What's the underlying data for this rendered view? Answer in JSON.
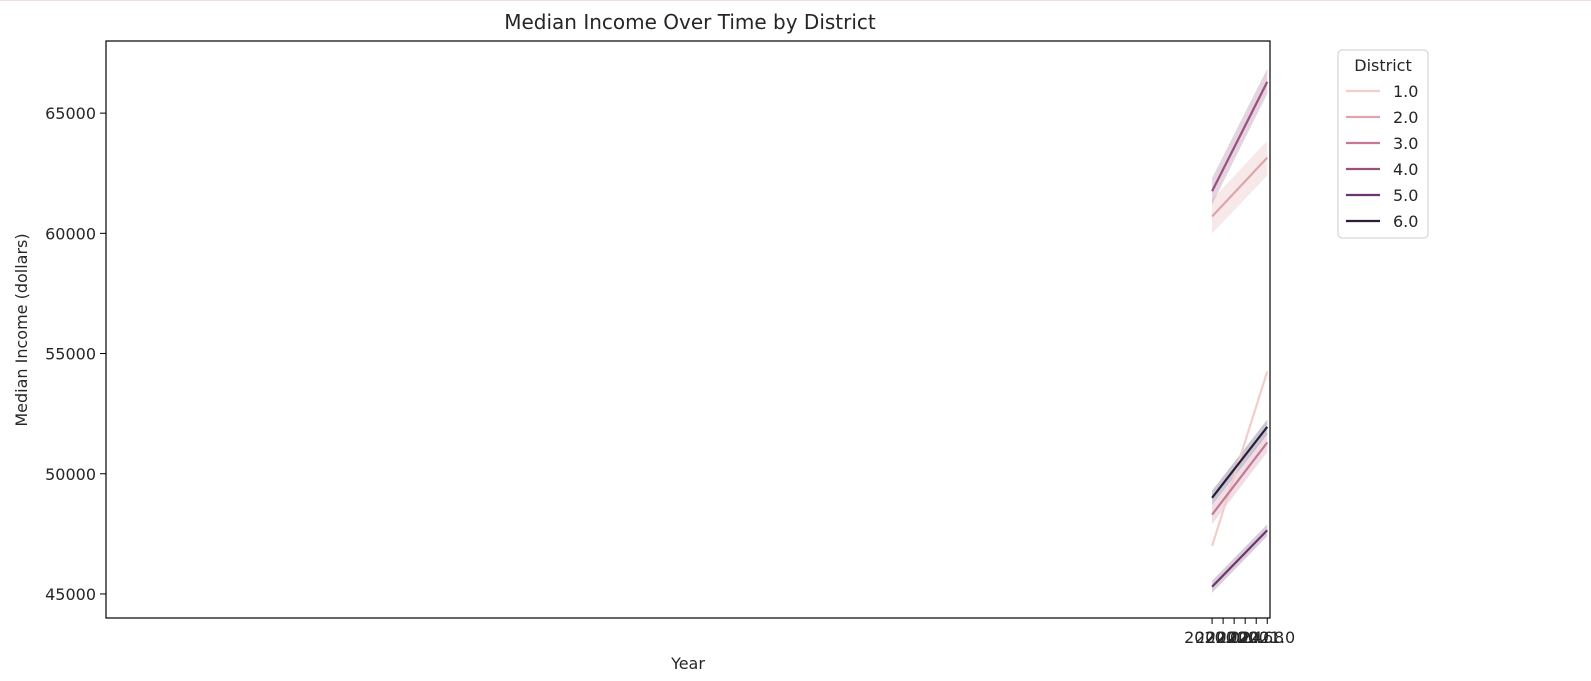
{
  "chart_data": {
    "type": "line",
    "title": "Median Income Over Time by District",
    "xlabel": "Year",
    "ylabel": "Median Income (dollars)",
    "xlim": [
      1999.95,
      2021.05
    ],
    "ylim": [
      44000,
      68000
    ],
    "x_ticks": [
      2020.0,
      2020.2,
      2020.4,
      2020.6,
      2020.8,
      2021.0
    ],
    "x_tick_labels": [
      "2020.0",
      "2020.2",
      "2020.4",
      "2020.6",
      "2020.8",
      "2021.0"
    ],
    "y_ticks": [
      45000,
      50000,
      55000,
      60000,
      65000
    ],
    "y_tick_labels": [
      "45000",
      "50000",
      "55000",
      "60000",
      "65000"
    ],
    "grid": false,
    "legend": {
      "title": "District",
      "placement": "outside-top-right"
    },
    "series": [
      {
        "name": "1.0",
        "color": "#f1cfc9",
        "x": [
          2020.0,
          2021.0
        ],
        "y": [
          47000,
          54250
        ],
        "ci_low": [
          46900,
          54100
        ],
        "ci_high": [
          47100,
          54400
        ]
      },
      {
        "name": "2.0",
        "color": "#dea5aa",
        "x": [
          2020.0,
          2021.0
        ],
        "y": [
          60700,
          63150
        ],
        "ci_low": [
          60000,
          62400
        ],
        "ci_high": [
          61400,
          63850
        ]
      },
      {
        "name": "3.0",
        "color": "#c47796",
        "x": [
          2020.0,
          2021.0
        ],
        "y": [
          48300,
          51300
        ],
        "ci_low": [
          47900,
          50900
        ],
        "ci_high": [
          48700,
          51700
        ]
      },
      {
        "name": "4.0",
        "color": "#98517f",
        "x": [
          2020.0,
          2021.0
        ],
        "y": [
          61750,
          66300
        ],
        "ci_low": [
          61200,
          65800
        ],
        "ci_high": [
          62300,
          66850
        ]
      },
      {
        "name": "5.0",
        "color": "#6a366e",
        "x": [
          2020.0,
          2021.0
        ],
        "y": [
          45300,
          47650
        ],
        "ci_low": [
          45050,
          47400
        ],
        "ci_high": [
          45550,
          47900
        ]
      },
      {
        "name": "6.0",
        "color": "#2a1b3f",
        "x": [
          2020.0,
          2021.0
        ],
        "y": [
          49000,
          51950
        ],
        "ci_low": [
          48700,
          51650
        ],
        "ci_high": [
          49300,
          52250
        ]
      }
    ]
  }
}
